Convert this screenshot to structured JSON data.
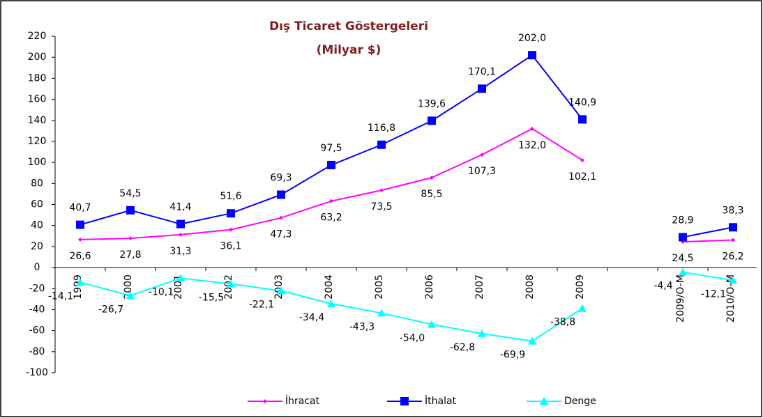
{
  "chart_data": {
    "type": "line",
    "title": "Dış Ticaret Göstergeleri",
    "subtitle": "(Milyar $)",
    "categories": [
      "1999",
      "2000",
      "2001",
      "2002",
      "2003",
      "2004",
      "2005",
      "2006",
      "2007",
      "2008",
      "2009",
      null,
      "2009/O-M",
      "2010/O-M"
    ],
    "series": [
      {
        "name": "İhracat",
        "color": "#ff00ff",
        "marker": "diamond",
        "values": [
          26.6,
          27.8,
          31.3,
          36.1,
          47.3,
          63.2,
          73.5,
          85.5,
          107.3,
          132.0,
          102.1,
          null,
          24.5,
          26.2
        ],
        "value_labels": [
          "26,6",
          "27,8",
          "31,3",
          "36,1",
          "47,3",
          "63,2",
          "73,5",
          "85,5",
          "107,3",
          "132,0",
          "102,1",
          null,
          "24,5",
          "26,2"
        ]
      },
      {
        "name": "İthalat",
        "color": "#0000ff",
        "marker": "square",
        "values": [
          40.7,
          54.5,
          41.4,
          51.6,
          69.3,
          97.5,
          116.8,
          139.6,
          170.1,
          202.0,
          140.9,
          null,
          28.9,
          38.3
        ],
        "value_labels": [
          "40,7",
          "54,5",
          "41,4",
          "51,6",
          "69,3",
          "97,5",
          "116,8",
          "139,6",
          "170,1",
          "202,0",
          "140,9",
          null,
          "28,9",
          "38,3"
        ]
      },
      {
        "name": "Denge",
        "color": "#00ffff",
        "marker": "triangle",
        "values": [
          -14.1,
          -26.7,
          -10.1,
          -15.5,
          -22.1,
          -34.4,
          -43.3,
          -54.0,
          -62.8,
          -69.9,
          -38.8,
          null,
          -4.4,
          -12.1
        ],
        "value_labels": [
          "-14,1",
          "-26,7",
          "-10,1",
          "-15,5",
          "-22,1",
          "-34,4",
          "-43,3",
          "-54,0",
          "-62,8",
          "-69,9",
          "-38,8",
          null,
          "-4,4",
          "-12,1"
        ]
      }
    ],
    "ylim": [
      -100,
      220
    ],
    "yticks": [
      -100,
      -80,
      -60,
      -40,
      -20,
      0,
      20,
      40,
      60,
      80,
      100,
      120,
      140,
      160,
      180,
      200,
      220
    ],
    "grid": false,
    "legend": "bottom"
  }
}
